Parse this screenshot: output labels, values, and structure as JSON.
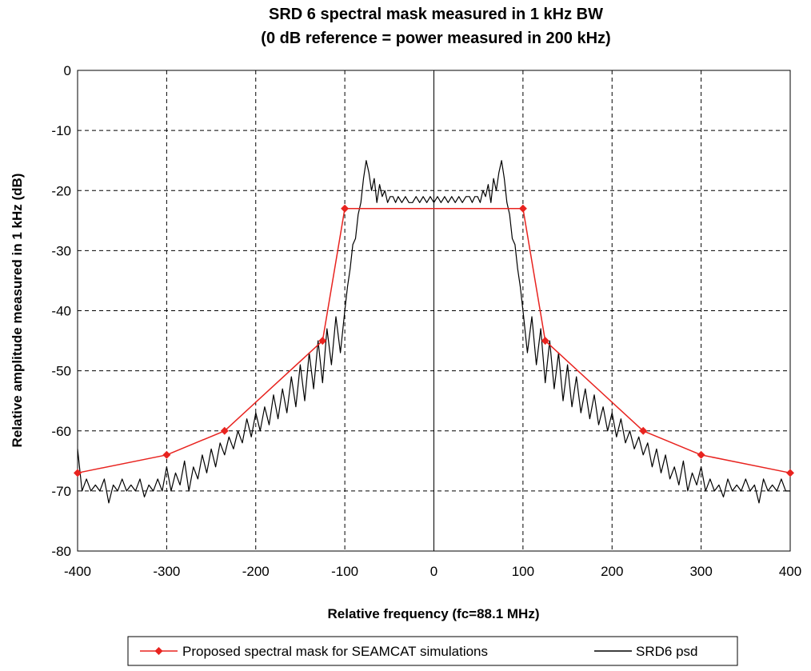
{
  "chart_data": {
    "type": "line",
    "title": "SRD 6 spectral mask  measured in  1 kHz BW",
    "subtitle": "(0 dB reference =  power measured in 200 kHz)",
    "xlabel": "Relative frequency (fc=88.1 MHz)",
    "ylabel": "Relative amplitude measured in 1 kHz (dB)",
    "xlim": [
      -400,
      400
    ],
    "ylim": [
      -80,
      0
    ],
    "x_ticks": [
      "-400",
      "-300",
      "-200",
      "-100",
      "0",
      "100",
      "200",
      "300",
      "400"
    ],
    "y_ticks": [
      "0",
      "-10",
      "-20",
      "-30",
      "-40",
      "-50",
      "-60",
      "-70",
      "-80"
    ],
    "grid": true,
    "legend_position": "bottom",
    "series": [
      {
        "name": "Proposed spectral mask for SEAMCAT simulations",
        "color": "#e8231f",
        "marker": "diamond",
        "x": [
          -400,
          -300,
          -235,
          -125,
          -100,
          100,
          125,
          235,
          300,
          400
        ],
        "y": [
          -67,
          -64,
          -60,
          -45,
          -23,
          -23,
          -45,
          -60,
          -64,
          -67
        ]
      },
      {
        "name": "SRD6 psd",
        "color": "#000000",
        "marker": "none",
        "x": [
          -400,
          -395,
          -390,
          -385,
          -380,
          -375,
          -370,
          -365,
          -360,
          -355,
          -350,
          -345,
          -340,
          -335,
          -330,
          -325,
          -320,
          -315,
          -310,
          -305,
          -300,
          -295,
          -290,
          -285,
          -280,
          -275,
          -270,
          -265,
          -260,
          -255,
          -250,
          -245,
          -240,
          -235,
          -230,
          -225,
          -220,
          -215,
          -210,
          -205,
          -200,
          -195,
          -190,
          -185,
          -180,
          -175,
          -170,
          -165,
          -160,
          -155,
          -150,
          -145,
          -140,
          -135,
          -130,
          -125,
          -120,
          -115,
          -110,
          -105,
          -100,
          -97,
          -94,
          -91,
          -88,
          -85,
          -82,
          -79,
          -76,
          -73,
          -70,
          -67,
          -64,
          -61,
          -58,
          -55,
          -52,
          -49,
          -46,
          -43,
          -40,
          -36,
          -32,
          -28,
          -24,
          -20,
          -16,
          -12,
          -8,
          -4,
          0,
          4,
          8,
          12,
          16,
          20,
          24,
          28,
          32,
          36,
          40,
          43,
          46,
          49,
          52,
          55,
          58,
          61,
          64,
          67,
          70,
          73,
          76,
          79,
          82,
          85,
          88,
          91,
          94,
          97,
          100,
          105,
          110,
          115,
          120,
          125,
          130,
          135,
          140,
          145,
          150,
          155,
          160,
          165,
          170,
          175,
          180,
          185,
          190,
          195,
          200,
          205,
          210,
          215,
          220,
          225,
          230,
          235,
          240,
          245,
          250,
          255,
          260,
          265,
          270,
          275,
          280,
          285,
          290,
          295,
          300,
          305,
          310,
          315,
          320,
          325,
          330,
          335,
          340,
          345,
          350,
          355,
          360,
          365,
          370,
          375,
          380,
          385,
          390,
          395,
          400
        ],
        "y": [
          -63,
          -70,
          -68,
          -70,
          -69,
          -70,
          -68,
          -72,
          -69,
          -70,
          -68,
          -70,
          -69,
          -70,
          -68,
          -71,
          -69,
          -70,
          -68,
          -70,
          -66,
          -70,
          -67,
          -69,
          -65,
          -70,
          -66,
          -68,
          -64,
          -67,
          -63,
          -66,
          -62,
          -64,
          -61,
          -63,
          -60,
          -62,
          -58,
          -61,
          -57,
          -60,
          -56,
          -59,
          -54,
          -58,
          -53,
          -57,
          -51,
          -56,
          -49,
          -55,
          -47,
          -53,
          -45,
          -52,
          -43,
          -49,
          -41,
          -47,
          -40,
          -36,
          -33,
          -29,
          -28,
          -24,
          -22,
          -18,
          -15,
          -17,
          -20,
          -18,
          -22,
          -19,
          -21,
          -20,
          -22,
          -21,
          -21,
          -22,
          -21,
          -22,
          -21,
          -22,
          -22,
          -21,
          -22,
          -21,
          -22,
          -21,
          -22,
          -21,
          -22,
          -21,
          -22,
          -21,
          -22,
          -21,
          -22,
          -21,
          -21,
          -22,
          -21,
          -21,
          -22,
          -20,
          -21,
          -19,
          -22,
          -18,
          -20,
          -17,
          -15,
          -18,
          -22,
          -24,
          -28,
          -29,
          -33,
          -36,
          -40,
          -47,
          -41,
          -49,
          -43,
          -52,
          -45,
          -53,
          -47,
          -55,
          -49,
          -56,
          -51,
          -57,
          -53,
          -58,
          -54,
          -59,
          -56,
          -60,
          -57,
          -61,
          -58,
          -62,
          -60,
          -63,
          -61,
          -64,
          -62,
          -66,
          -63,
          -67,
          -64,
          -68,
          -66,
          -69,
          -65,
          -70,
          -67,
          -69,
          -66,
          -70,
          -68,
          -70,
          -69,
          -71,
          -68,
          -70,
          -69,
          -70,
          -68,
          -70,
          -69,
          -72,
          -68,
          -70,
          -69,
          -70,
          -68,
          -70,
          -70
        ]
      }
    ]
  }
}
